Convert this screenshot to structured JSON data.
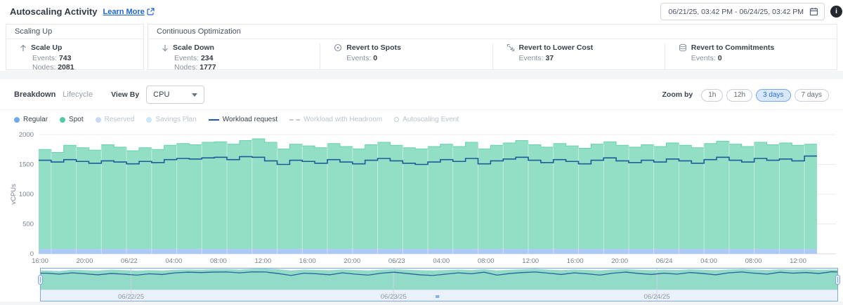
{
  "header": {
    "title": "Autoscaling Activity",
    "learn_more": "Learn More",
    "date_range": "06/21/25, 03:42 PM - 06/24/25, 03:42 PM",
    "info_glyph": "i"
  },
  "stats": {
    "scaling_up": {
      "title": "Scaling Up",
      "items": [
        {
          "icon": "arrow-up-icon",
          "label": "Scale Up",
          "metrics": [
            {
              "label": "Events:",
              "value": "743"
            },
            {
              "label": "Nodes:",
              "value": "2081"
            }
          ]
        }
      ]
    },
    "continuous_optimization": {
      "title": "Continuous Optimization",
      "items": [
        {
          "icon": "arrow-down-icon",
          "label": "Scale Down",
          "metrics": [
            {
              "label": "Events:",
              "value": "234"
            },
            {
              "label": "Nodes:",
              "value": "1777"
            }
          ]
        },
        {
          "icon": "spots-icon",
          "label": "Revert to Spots",
          "metrics": [
            {
              "label": "Events:",
              "value": "0"
            }
          ]
        },
        {
          "icon": "lower-cost-icon",
          "label": "Revert to Lower Cost",
          "metrics": [
            {
              "label": "Events:",
              "value": "37"
            }
          ]
        },
        {
          "icon": "commitments-icon",
          "label": "Revert to Commitments",
          "metrics": [
            {
              "label": "Events:",
              "value": "0"
            }
          ]
        }
      ]
    }
  },
  "controls": {
    "tabs": [
      {
        "label": "Breakdown",
        "active": true
      },
      {
        "label": "Lifecycle",
        "active": false
      }
    ],
    "view_by_label": "View By",
    "view_by_value": "CPU",
    "zoom_by_label": "Zoom by",
    "zoom_options": [
      {
        "label": "1h",
        "active": false
      },
      {
        "label": "12h",
        "active": false
      },
      {
        "label": "3 days",
        "active": true
      },
      {
        "label": "7 days",
        "active": false
      }
    ]
  },
  "legend": [
    {
      "label": "Regular",
      "swatch": "dot",
      "color": "#6fa8ec",
      "active": true
    },
    {
      "label": "Spot",
      "swatch": "dot",
      "color": "#50cda2",
      "active": true
    },
    {
      "label": "Reserved",
      "swatch": "dot",
      "color": "#c9d9f4",
      "active": false
    },
    {
      "label": "Savings Plan",
      "swatch": "dot",
      "color": "#c9eaf6",
      "active": false
    },
    {
      "label": "Workload request",
      "swatch": "line",
      "color": "#1e5c99",
      "active": true
    },
    {
      "label": "Workload with Headroom",
      "swatch": "dashed-line",
      "color": "#c3c9d3",
      "active": false
    },
    {
      "label": "Autoscaling Event",
      "swatch": "hollow-dot",
      "color": "#c3c9d3",
      "active": false
    }
  ],
  "chart_data": {
    "type": "area",
    "title": "Autoscaling Activity breakdown by CPU",
    "ylabel": "vCPUs",
    "ylim": [
      0,
      2000
    ],
    "yticks": [
      0,
      500,
      1000,
      1500,
      2000
    ],
    "xticks": [
      "16:00",
      "20:00",
      "06/22",
      "04:00",
      "08:00",
      "12:00",
      "16:00",
      "20:00",
      "06/23",
      "04:00",
      "08:00",
      "12:00",
      "16:00",
      "20:00",
      "06/24",
      "04:00",
      "08:00",
      "12:00"
    ],
    "stacked": true,
    "grid": true,
    "legend_position": "top",
    "series": [
      {
        "name": "Regular",
        "type": "area",
        "color": "#abc9f4",
        "constant_value": 80
      },
      {
        "name": "Spot",
        "type": "area",
        "color": "#93dfc5",
        "stroke": "#63d2ab",
        "values": [
          1670,
          1620,
          1740,
          1700,
          1660,
          1750,
          1710,
          1650,
          1700,
          1670,
          1740,
          1770,
          1750,
          1790,
          1800,
          1760,
          1820,
          1850,
          1790,
          1680,
          1760,
          1730,
          1700,
          1770,
          1720,
          1680,
          1750,
          1790,
          1740,
          1700,
          1680,
          1720,
          1760,
          1720,
          1790,
          1680,
          1740,
          1780,
          1820,
          1750,
          1710,
          1770,
          1730,
          1690,
          1760,
          1800,
          1740,
          1710,
          1750,
          1720,
          1780,
          1740,
          1700,
          1770,
          1810,
          1760,
          1720,
          1790,
          1750,
          1780,
          1740,
          1760
        ]
      },
      {
        "name": "Workload request",
        "type": "line",
        "color": "#1e5c99",
        "values": [
          1570,
          1540,
          1580,
          1550,
          1520,
          1560,
          1540,
          1510,
          1550,
          1530,
          1580,
          1600,
          1590,
          1610,
          1620,
          1580,
          1630,
          1620,
          1560,
          1500,
          1570,
          1550,
          1520,
          1580,
          1540,
          1510,
          1570,
          1600,
          1560,
          1520,
          1500,
          1540,
          1580,
          1550,
          1600,
          1510,
          1560,
          1590,
          1620,
          1570,
          1530,
          1580,
          1550,
          1510,
          1570,
          1610,
          1560,
          1530,
          1570,
          1540,
          1590,
          1560,
          1520,
          1580,
          1620,
          1570,
          1540,
          1600,
          1570,
          1590,
          1560,
          1640
        ]
      }
    ],
    "brush": {
      "date_labels": [
        {
          "text": "06/22/25",
          "pos": 0.114
        },
        {
          "text": "06/23/25",
          "pos": 0.443
        },
        {
          "text": "06/24/25",
          "pos": 0.773
        }
      ],
      "marker_pos": 0.498,
      "selection": [
        0,
        1
      ]
    }
  },
  "colors": {
    "grid": "#e9ebef",
    "baseline": "#d9dce1",
    "tick_text": "#7a828e",
    "strip_bg": "#e9f1fb",
    "strip_line": "#cbd8ea",
    "strip_text": "#8d98a8",
    "brush_marker": "#86aee4"
  }
}
